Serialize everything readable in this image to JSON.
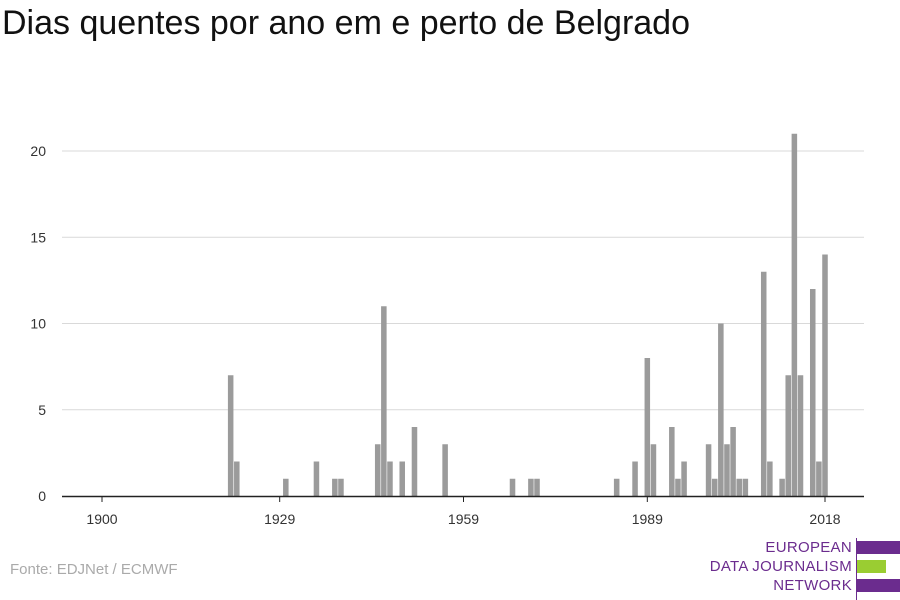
{
  "title": "Dias quentes por ano em e perto de Belgrado",
  "source": "Fonte: EDJNet / ECMWF",
  "logo": {
    "line1": "EUROPEAN",
    "line2": "DATA JOURNALISM",
    "line3": "NETWORK",
    "color_purple": "#6b2c8e",
    "color_green": "#9acd32"
  },
  "chart_data": {
    "type": "bar",
    "title": "Dias quentes por ano em e perto de Belgrado",
    "xlabel": "",
    "ylabel": "",
    "xlim": [
      1900,
      2018
    ],
    "ylim": [
      0,
      21
    ],
    "x_ticks": [
      1900,
      1929,
      1959,
      1989,
      2018
    ],
    "y_ticks": [
      0,
      5,
      10,
      15,
      20
    ],
    "grid": true,
    "bar_color": "#9b9b9b",
    "series": [
      {
        "x": [
          1921,
          1922,
          1930,
          1935,
          1938,
          1939,
          1945,
          1946,
          1947,
          1949,
          1951,
          1956,
          1967,
          1970,
          1971,
          1984,
          1987,
          1989,
          1990,
          1993,
          1994,
          1995,
          1999,
          2000,
          2001,
          2002,
          2003,
          2004,
          2005,
          2008,
          2009,
          2011,
          2012,
          2013,
          2014,
          2016,
          2017,
          2018
        ],
        "values": [
          7,
          2,
          1,
          2,
          1,
          1,
          3,
          11,
          2,
          2,
          4,
          3,
          1,
          1,
          1,
          1,
          2,
          8,
          3,
          4,
          1,
          2,
          3,
          1,
          10,
          3,
          4,
          1,
          1,
          13,
          2,
          1,
          7,
          21,
          7,
          12,
          2,
          14
        ]
      }
    ]
  }
}
